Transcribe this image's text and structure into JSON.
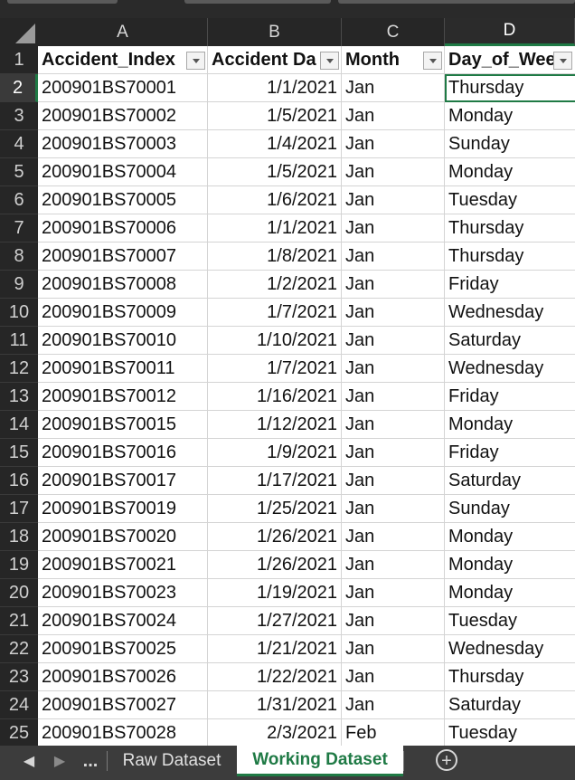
{
  "columns": [
    "A",
    "B",
    "C",
    "D"
  ],
  "header_row_number": "1",
  "headers": [
    "Accident_Index",
    "Accident Da",
    "Month",
    "Day_of_Wee"
  ],
  "rows": [
    {
      "n": "2",
      "a": "200901BS70001",
      "b": "1/1/2021",
      "c": "Jan",
      "d": "Thursday"
    },
    {
      "n": "3",
      "a": "200901BS70002",
      "b": "1/5/2021",
      "c": "Jan",
      "d": "Monday"
    },
    {
      "n": "4",
      "a": "200901BS70003",
      "b": "1/4/2021",
      "c": "Jan",
      "d": "Sunday"
    },
    {
      "n": "5",
      "a": "200901BS70004",
      "b": "1/5/2021",
      "c": "Jan",
      "d": "Monday"
    },
    {
      "n": "6",
      "a": "200901BS70005",
      "b": "1/6/2021",
      "c": "Jan",
      "d": "Tuesday"
    },
    {
      "n": "7",
      "a": "200901BS70006",
      "b": "1/1/2021",
      "c": "Jan",
      "d": "Thursday"
    },
    {
      "n": "8",
      "a": "200901BS70007",
      "b": "1/8/2021",
      "c": "Jan",
      "d": "Thursday"
    },
    {
      "n": "9",
      "a": "200901BS70008",
      "b": "1/2/2021",
      "c": "Jan",
      "d": "Friday"
    },
    {
      "n": "10",
      "a": "200901BS70009",
      "b": "1/7/2021",
      "c": "Jan",
      "d": "Wednesday"
    },
    {
      "n": "11",
      "a": "200901BS70010",
      "b": "1/10/2021",
      "c": "Jan",
      "d": "Saturday"
    },
    {
      "n": "12",
      "a": "200901BS70011",
      "b": "1/7/2021",
      "c": "Jan",
      "d": "Wednesday"
    },
    {
      "n": "13",
      "a": "200901BS70012",
      "b": "1/16/2021",
      "c": "Jan",
      "d": "Friday"
    },
    {
      "n": "14",
      "a": "200901BS70015",
      "b": "1/12/2021",
      "c": "Jan",
      "d": "Monday"
    },
    {
      "n": "15",
      "a": "200901BS70016",
      "b": "1/9/2021",
      "c": "Jan",
      "d": "Friday"
    },
    {
      "n": "16",
      "a": "200901BS70017",
      "b": "1/17/2021",
      "c": "Jan",
      "d": "Saturday"
    },
    {
      "n": "17",
      "a": "200901BS70019",
      "b": "1/25/2021",
      "c": "Jan",
      "d": "Sunday"
    },
    {
      "n": "18",
      "a": "200901BS70020",
      "b": "1/26/2021",
      "c": "Jan",
      "d": "Monday"
    },
    {
      "n": "19",
      "a": "200901BS70021",
      "b": "1/26/2021",
      "c": "Jan",
      "d": "Monday"
    },
    {
      "n": "20",
      "a": "200901BS70023",
      "b": "1/19/2021",
      "c": "Jan",
      "d": "Monday"
    },
    {
      "n": "21",
      "a": "200901BS70024",
      "b": "1/27/2021",
      "c": "Jan",
      "d": "Tuesday"
    },
    {
      "n": "22",
      "a": "200901BS70025",
      "b": "1/21/2021",
      "c": "Jan",
      "d": "Wednesday"
    },
    {
      "n": "23",
      "a": "200901BS70026",
      "b": "1/22/2021",
      "c": "Jan",
      "d": "Thursday"
    },
    {
      "n": "24",
      "a": "200901BS70027",
      "b": "1/31/2021",
      "c": "Jan",
      "d": "Saturday"
    },
    {
      "n": "25",
      "a": "200901BS70028",
      "b": "2/3/2021",
      "c": "Feb",
      "d": "Tuesday"
    }
  ],
  "selected_column": "D",
  "selected_row": "2",
  "tabs": {
    "ellipsis": "...",
    "items": [
      {
        "label": "Raw Dataset",
        "active": false
      },
      {
        "label": "Working Dataset",
        "active": true
      }
    ],
    "add_icon": "plus-circle-icon",
    "prev_icon": "chevron-left-icon",
    "next_icon": "chevron-right-icon"
  },
  "colors": {
    "accent": "#1f7a45",
    "header_bg": "#262626",
    "grid_line": "#d4d4d4"
  }
}
